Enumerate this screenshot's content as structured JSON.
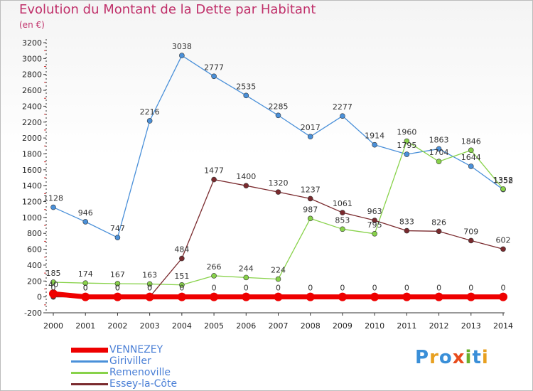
{
  "title": "Evolution du Montant de la Dette par Habitant",
  "subtitle": "(en €)",
  "logo": "Proxiti",
  "chart_data": {
    "type": "line",
    "title": "Evolution du Montant de la Dette par Habitant",
    "ylabel": "(en €)",
    "x": [
      "2000",
      "2001",
      "2002",
      "2003",
      "2004",
      "2005",
      "2006",
      "2007",
      "2008",
      "2009",
      "2010",
      "2011",
      "2012",
      "2013",
      "2014"
    ],
    "ylim": [
      -200,
      3200
    ],
    "yticks": [
      -200,
      0,
      200,
      400,
      600,
      800,
      1000,
      1200,
      1400,
      1600,
      1800,
      2000,
      2200,
      2400,
      2600,
      2800,
      3000,
      3200
    ],
    "grid": false,
    "legend_position": "bottom-left",
    "series": [
      {
        "name": "Giriviller",
        "color": "#4a90d9",
        "values": [
          1128,
          946,
          747,
          2216,
          3038,
          2777,
          2535,
          2285,
          2017,
          2277,
          1914,
          1795,
          1863,
          1644,
          1352
        ]
      },
      {
        "name": "Remenoville",
        "color": "#88d24a",
        "values": [
          185,
          174,
          167,
          163,
          151,
          266,
          244,
          224,
          987,
          853,
          795,
          1960,
          1704,
          1846,
          1358
        ]
      },
      {
        "name": "Essey-la-Côte",
        "color": "#7a2a2e",
        "values": [
          0,
          0,
          0,
          0,
          484,
          1477,
          1400,
          1320,
          1237,
          1061,
          963,
          833,
          826,
          709,
          602
        ]
      },
      {
        "name": "VENNEZEY",
        "color": "#ee0000",
        "values": [
          40,
          0,
          0,
          0,
          0,
          0,
          0,
          0,
          0,
          0,
          0,
          0,
          0,
          0,
          0
        ]
      }
    ]
  }
}
